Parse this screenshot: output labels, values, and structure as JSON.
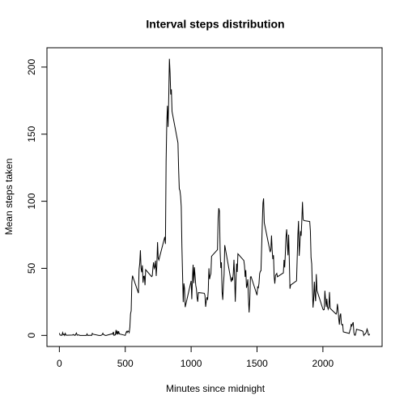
{
  "chart_data": {
    "type": "line",
    "title": "Interval steps distribution",
    "x_label": "Minutes since midnight",
    "y_label": "Mean steps taken",
    "x": [
      0,
      5,
      10,
      15,
      20,
      25,
      30,
      35,
      40,
      45,
      50,
      55,
      100,
      105,
      110,
      115,
      120,
      125,
      130,
      135,
      140,
      145,
      150,
      155,
      200,
      205,
      210,
      215,
      220,
      225,
      230,
      235,
      240,
      245,
      250,
      255,
      300,
      305,
      310,
      315,
      320,
      325,
      330,
      335,
      340,
      345,
      350,
      355,
      400,
      405,
      410,
      415,
      420,
      425,
      430,
      435,
      440,
      445,
      450,
      455,
      500,
      505,
      510,
      515,
      520,
      525,
      530,
      535,
      540,
      545,
      550,
      555,
      600,
      605,
      610,
      615,
      620,
      625,
      630,
      635,
      640,
      645,
      650,
      655,
      700,
      705,
      710,
      715,
      720,
      725,
      730,
      735,
      740,
      745,
      750,
      755,
      800,
      805,
      810,
      815,
      820,
      825,
      830,
      835,
      840,
      845,
      850,
      855,
      900,
      905,
      910,
      915,
      920,
      925,
      930,
      935,
      940,
      945,
      950,
      955,
      1000,
      1005,
      1010,
      1015,
      1020,
      1025,
      1030,
      1035,
      1040,
      1045,
      1050,
      1055,
      1100,
      1105,
      1110,
      1115,
      1120,
      1125,
      1130,
      1135,
      1140,
      1145,
      1150,
      1155,
      1200,
      1205,
      1210,
      1215,
      1220,
      1225,
      1230,
      1235,
      1240,
      1245,
      1250,
      1255,
      1300,
      1305,
      1310,
      1315,
      1320,
      1325,
      1330,
      1335,
      1340,
      1345,
      1350,
      1355,
      1400,
      1405,
      1410,
      1415,
      1420,
      1425,
      1430,
      1435,
      1440,
      1445,
      1450,
      1455,
      1500,
      1505,
      1510,
      1515,
      1520,
      1525,
      1530,
      1535,
      1540,
      1545,
      1550,
      1555,
      1600,
      1605,
      1610,
      1615,
      1620,
      1625,
      1630,
      1635,
      1640,
      1645,
      1650,
      1655,
      1700,
      1705,
      1710,
      1715,
      1720,
      1725,
      1730,
      1735,
      1740,
      1745,
      1750,
      1755,
      1800,
      1805,
      1810,
      1815,
      1820,
      1825,
      1830,
      1835,
      1840,
      1845,
      1850,
      1855,
      1900,
      1905,
      1910,
      1915,
      1920,
      1925,
      1930,
      1935,
      1940,
      1945,
      1950,
      1955,
      2000,
      2005,
      2010,
      2015,
      2020,
      2025,
      2030,
      2035,
      2040,
      2045,
      2050,
      2055,
      2100,
      2105,
      2110,
      2115,
      2120,
      2125,
      2130,
      2135,
      2140,
      2145,
      2150,
      2155,
      2200,
      2205,
      2210,
      2215,
      2220,
      2225,
      2230,
      2235,
      2240,
      2245,
      2250,
      2255,
      2300,
      2305,
      2310,
      2315,
      2320,
      2325,
      2330,
      2335,
      2340,
      2345,
      2350,
      2355
    ],
    "series": [
      {
        "color": "#000000",
        "values": [
          1.7,
          0.3,
          0.1,
          0.2,
          0.1,
          2.1,
          0.5,
          0.9,
          0,
          1.5,
          0.3,
          0.1,
          0.3,
          0.7,
          0.2,
          0.3,
          0,
          1.1,
          1.8,
          0.2,
          0.2,
          0.4,
          0.3,
          0,
          0,
          0,
          1.1,
          0,
          0,
          0.1,
          0,
          0.2,
          0,
          0,
          1.5,
          0.9,
          0,
          0,
          0,
          0,
          0.2,
          0.6,
          1.6,
          0.6,
          0.5,
          0.1,
          0,
          0,
          1.2,
          0.9,
          2.6,
          0,
          0.3,
          0.4,
          4.1,
          0.7,
          3.5,
          0.8,
          3.1,
          1.1,
          0,
          1.6,
          3,
          2.2,
          3.3,
          3,
          2.1,
          6.1,
          16,
          18.3,
          39.5,
          44.5,
          31.5,
          49.3,
          53.8,
          63.5,
          50,
          47.1,
          52.2,
          39.3,
          44,
          44.2,
          37.4,
          49,
          43.8,
          44.4,
          50.5,
          54.5,
          49.9,
          51,
          55.7,
          44.3,
          52.3,
          69.5,
          57.8,
          56.2,
          73.4,
          68.2,
          129.4,
          157.5,
          171.2,
          155.4,
          177.3,
          206.2,
          195.9,
          179.6,
          183.4,
          167,
          143.5,
          124,
          109.1,
          108.1,
          103.7,
          96,
          66.2,
          45.2,
          24.8,
          38.8,
          35,
          21.1,
          40.6,
          27,
          42.4,
          52.7,
          38.9,
          50.8,
          44.3,
          37.4,
          34.7,
          28.3,
          25.1,
          31.9,
          31.4,
          29.7,
          21.3,
          25.5,
          28.4,
          26.5,
          33.4,
          50,
          42,
          44.6,
          46,
          59,
          63.9,
          87.6,
          94.8,
          92.8,
          63.4,
          50.2,
          54.5,
          32.4,
          26.5,
          37.7,
          45.1,
          67.3,
          42.3,
          39.9,
          43.3,
          41,
          46.2,
          56.4,
          42.8,
          25.1,
          40,
          53.5,
          47.3,
          60.8,
          55.8,
          52,
          43.6,
          48.7,
          35.5,
          37.5,
          41.8,
          27.5,
          17.1,
          26.1,
          43.6,
          43.8,
          30,
          36.1,
          35.5,
          38.8,
          46,
          47.8,
          48.1,
          65.3,
          82.9,
          98.7,
          102.1,
          84,
          62.1,
          64.1,
          74.5,
          63.2,
          56.9,
          59.8,
          43.9,
          38.6,
          44.7,
          45.5,
          46.2,
          43.7,
          46.6,
          56.3,
          50.7,
          61.2,
          73.4,
          79.1,
          68.9,
          59.7,
          75.1,
          56.5,
          34.8,
          37.5,
          40.7,
          58,
          74.7,
          85.3,
          59.3,
          67.8,
          77.7,
          74.2,
          85.3,
          99.5,
          86.6,
          85.6,
          84.9,
          77.8,
          58,
          53.4,
          36.3,
          20.7,
          27.4,
          40,
          30.2,
          25.5,
          45.7,
          33.5,
          19.6,
          19,
          19.3,
          33.3,
          26.8,
          21.2,
          27.3,
          21.3,
          19.5,
          21.3,
          32.3,
          20.2,
          15.9,
          17.2,
          23.5,
          19.2,
          12.5,
          8,
          14.7,
          16.3,
          8.7,
          7.8,
          8.1,
          2.6,
          1.5,
          3.7,
          4.8,
          8.5,
          7.1,
          8.7,
          9.8,
          2.2,
          0.3,
          0.1,
          1.6,
          4.6,
          3.3,
          2.8,
          0,
          0.8,
          1,
          1.6,
          2.6,
          4.7,
          3.3,
          0.6,
          0.2,
          1.1
        ]
      }
    ],
    "xlim": [
      -94.2,
      2449.2
    ],
    "xticks": [
      0,
      500,
      1000,
      1500,
      2000
    ],
    "ylim": [
      -8.25,
      214.4
    ],
    "yticks": [
      0,
      50,
      100,
      150,
      200
    ]
  }
}
